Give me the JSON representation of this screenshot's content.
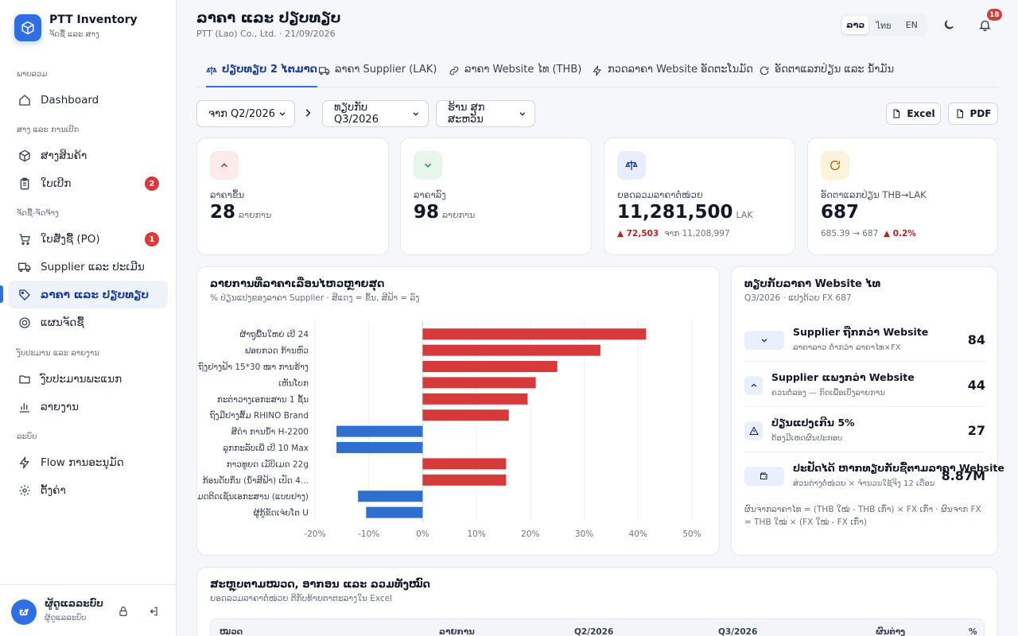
{
  "brand": {
    "name": "PTT Inventory",
    "subtitle": "ຈັດຊື້ ແລະ ສາງ"
  },
  "sidebar": {
    "sections": [
      {
        "label": "ພາບລວມ"
      },
      {
        "label": "ສາງ ແລະ ການເບີກ"
      },
      {
        "label": "ຈັດຊື້-ຈັດຈ້າງ"
      },
      {
        "label": "ງົບປະມານ ແລະ ລາຍງານ"
      },
      {
        "label": "ລະບົບ"
      }
    ],
    "items": [
      {
        "label": "Dashboard",
        "icon": "home-icon"
      },
      {
        "label": "ສາງສິນຄ້າ",
        "icon": "box-icon"
      },
      {
        "label": "ໃບເບີກ",
        "icon": "clipboard-icon",
        "badge": "2"
      },
      {
        "label": "ໃບສັ່ງຊື້ (PO)",
        "icon": "cart-icon",
        "badge": "1"
      },
      {
        "label": "Supplier ແລະ ປະເມີນ",
        "icon": "truck-icon"
      },
      {
        "label": "ລາຄາ ແລະ ປຽບທຽບ",
        "icon": "tag-icon",
        "active": true
      },
      {
        "label": "ແຜນຈັດຊື້",
        "icon": "target-icon"
      },
      {
        "label": "ງົບປະມານພະແນກ",
        "icon": "folder-icon"
      },
      {
        "label": "ລາຍງານ",
        "icon": "bar-chart-icon"
      },
      {
        "label": "Flow ການອະນຸມັດ",
        "icon": "bolt-icon"
      },
      {
        "label": "ຕັ້ງຄ່າ",
        "icon": "gear-icon"
      }
    ]
  },
  "user": {
    "initial": "ຜ",
    "name": "ຜູ້ດູແລລະບົບ",
    "role": "ຜູ້ດູແລລະບົບ"
  },
  "header": {
    "title": "ລາຄາ ແລະ ປຽບທຽບ",
    "subtitle": "PTT (Lao) Co., Ltd. · 21/09/2026",
    "notification_count": "18"
  },
  "languages": [
    {
      "label": "ລາວ",
      "active": true
    },
    {
      "label": "ไทย"
    },
    {
      "label": "EN"
    }
  ],
  "tabs": [
    {
      "label": "ປຽບທຽບ 2 ໄຕມາດ",
      "icon": "scale-icon",
      "active": true
    },
    {
      "label": "ລາຄາ Supplier (LAK)",
      "icon": "truck-icon"
    },
    {
      "label": "ລາຄາ Website ໄທ (THB)",
      "icon": "link-icon"
    },
    {
      "label": "ກວດລາຄາ Website ອັດຕະໂນມັດ",
      "icon": "bolt-icon"
    },
    {
      "label": "ອັດຕາແລກປ່ຽນ ແລະ ນ້ຳມັນ",
      "icon": "refresh-icon"
    }
  ],
  "filters": {
    "from": "ຈາກ Q2/2026",
    "compare": "ທຽບກັບ Q3/2026",
    "shop": "ຮ້ານ ສຸກສະຫວັນ"
  },
  "exports": {
    "excel": "Excel",
    "pdf": "PDF"
  },
  "kpis": [
    {
      "label": "ລາຄາຂຶ້ນ",
      "value": "28",
      "unit": "ລາຍການ",
      "icon": "arrow-up-icon",
      "color": "#fdeaea"
    },
    {
      "label": "ລາຄາລົງ",
      "value": "98",
      "unit": "ລາຍການ",
      "icon": "arrow-down-icon",
      "color": "#e6f6ea"
    },
    {
      "label": "ຍອດລວມລາຄາຕໍ່ໜ່ວຍ",
      "value": "11,281,500",
      "unit": "LAK",
      "delta": "72,503",
      "from": "ຈາກ 11,208,997",
      "icon": "scale-icon",
      "color": "#e8effb"
    },
    {
      "label": "ອັດຕາແລກປ່ຽນ THB→LAK",
      "value": "687",
      "change": "685.39 → 687",
      "delta": "0.2%",
      "icon": "refresh-icon",
      "color": "#fdf2dc"
    }
  ],
  "chart_data": {
    "type": "bar",
    "orientation": "horizontal",
    "title": "ລາຍການທີ່ລາຄາເລື່ອນໄຫວຫຼາຍສຸດ",
    "subtitle": "% ປ່ຽນແປງຂອງລາຄາ Supplier · ສີແດງ = ຂຶ້ນ, ສີຟ້າ = ລົງ",
    "categories": [
      "ຜ້າຖູພື້ນໃຫຍ່ ເບີ 24",
      "ຟອຍກວດ ກ້ານຫົວ",
      "ຖົງຢາງຟ້າ 15*30 ໜາ ການຮ້າງ",
      "ເຫັນໂບກ",
      "ກະຕ່າວາງເອກະສານ 1 ຊັ້ນ",
      "ຖົງມືຢາງສົ້ມ RHINO Brand",
      "ສີດຳ ການນ້ຳ H-2200",
      "ລູກກະລັບເພີ່ ເບີ 10 Max",
      "ກາວທູຍດ ເມັບິເມດ 22g",
      "ກ້ອນດັບກິ່ນ (ນ້ຳສີຟ້າ) ເປັດ 4...",
      "ໂມດຕິດເຊັນເອກະສານ (ແບບຢາງ)",
      "ຜູ້ກູ້ຂັດເຈ່ຍໂຕ U"
    ],
    "values": [
      41.5,
      33,
      25,
      21,
      19.5,
      16,
      -16,
      -16,
      15.5,
      15.5,
      -12,
      -10.5
    ],
    "colors": {
      "up": "#d63a3a",
      "down": "#2f6fd0"
    },
    "xlim": [
      -20,
      50
    ],
    "ticks": [
      "-20%",
      "-10%",
      "0%",
      "10%",
      "20%",
      "30%",
      "40%",
      "50%"
    ],
    "grid": true
  },
  "compare": {
    "title": "ທຽບກັບລາຄາ Website ໄທ",
    "subtitle": "Q3/2026 · ແປງດ້ວຍ FX 687",
    "rows": [
      {
        "title": "Supplier ຖືກກວ່າ Website",
        "sub": "ລາຄາລາວ ຕ່ຳກວ່າ ລາຄາໄທ×FX",
        "value": "84",
        "icon": "chevron-down-icon"
      },
      {
        "title": "Supplier ແພງກວ່າ Website",
        "sub": "ຄວນຕໍ່ລອງ — ກົດເພື່ອເບິ່ງລາຍການ",
        "value": "44",
        "icon": "chevron-up-icon"
      },
      {
        "title": "ປ່ຽນແປງເກີນ 5%",
        "sub": "ຕ້ອງມີເຫດຜົນປະກອບ",
        "value": "27",
        "icon": "warning-icon"
      },
      {
        "title": "ປະຢັດໄດ້ ຫາກທຽບກັບຊື້ຕາມລາຄາ Website",
        "sub": "ສ່ວນຕ່າງຕໍ່ໜ່ວຍ × ຈຳນວນໃຊ້ຈິງ 12 ເດືອນ",
        "value": "8.87M",
        "icon": "wallet-icon"
      }
    ],
    "note": "ຜົນຈາກລາຄາໄທ = (THB ໃໝ່ - THB ເກົ່າ) × FX ເກົ່າ · ຜົນຈາກ FX = THB ໃໝ່ × (FX ໃໝ່ - FX ເກົ່າ)"
  },
  "summary": {
    "title": "ສະຫຼຸບຕາມໝວດ, ອາກອນ ແລະ ລວມທັງໝົດ",
    "subtitle": "ຍອດລວມລາຄາຕໍ່ໜ່ວຍ ຕີກັບທ້າຍຕາຕະລາງໃນ Excel",
    "columns": [
      "ໝວດ",
      "ລາຍການ",
      "Q2/2026",
      "Q3/2026",
      "ຜົນຕ່າງ",
      "%"
    ]
  }
}
